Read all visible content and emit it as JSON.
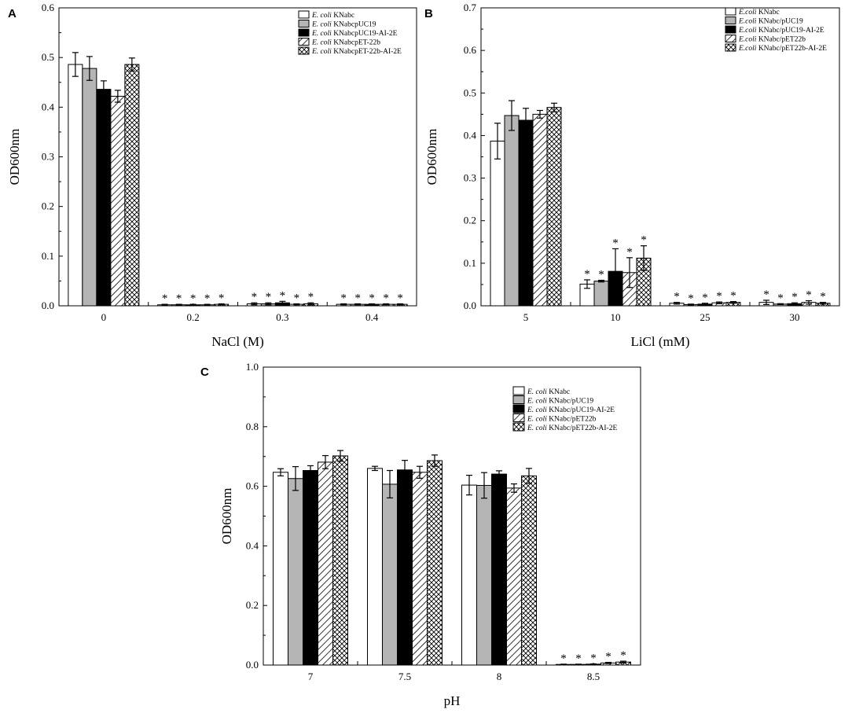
{
  "figure": {
    "panels": [
      "A",
      "B",
      "C"
    ]
  },
  "chart_data": [
    {
      "panel": "A",
      "type": "bar",
      "title": "",
      "xlabel": "NaCl (M)",
      "ylabel": "OD600nm",
      "ylim": [
        0,
        0.6
      ],
      "yticks": [
        "0.0",
        "0.1",
        "0.2",
        "0.3",
        "0.4",
        "0.5",
        "0.6"
      ],
      "categories": [
        "0",
        "0.2",
        "0.3",
        "0.4"
      ],
      "legend_position": "top-right",
      "series": [
        {
          "name_italic": "E. coli",
          "name_rest": "KNabc",
          "pattern": "white",
          "values": [
            0.486,
            0.002,
            0.004,
            0.003
          ],
          "errors": [
            0.024,
            0.001,
            0.002,
            0.001
          ],
          "stars": [
            false,
            true,
            true,
            true
          ]
        },
        {
          "name_italic": "E. coli",
          "name_rest": "KNabcpUC19",
          "pattern": "gray",
          "values": [
            0.478,
            0.002,
            0.004,
            0.003
          ],
          "errors": [
            0.024,
            0.001,
            0.002,
            0.001
          ],
          "stars": [
            false,
            true,
            true,
            true
          ]
        },
        {
          "name_italic": "E. coli",
          "name_rest": "KNabcpUC19-AI-2E",
          "pattern": "black",
          "values": [
            0.436,
            0.002,
            0.006,
            0.003
          ],
          "errors": [
            0.017,
            0.001,
            0.003,
            0.001
          ],
          "stars": [
            false,
            true,
            true,
            true
          ]
        },
        {
          "name_italic": "E. coli",
          "name_rest": "KNabcpET-22b",
          "pattern": "hatch",
          "values": [
            0.422,
            0.002,
            0.003,
            0.003
          ],
          "errors": [
            0.012,
            0.001,
            0.001,
            0.001
          ],
          "stars": [
            false,
            true,
            true,
            true
          ]
        },
        {
          "name_italic": "E. coli",
          "name_rest": "KNabcpET-22b-AI-2E",
          "pattern": "cross",
          "values": [
            0.486,
            0.003,
            0.004,
            0.003
          ],
          "errors": [
            0.013,
            0.001,
            0.002,
            0.001
          ],
          "stars": [
            false,
            true,
            true,
            true
          ]
        }
      ],
      "annotations": [
        "*"
      ]
    },
    {
      "panel": "B",
      "type": "bar",
      "title": "",
      "xlabel": "LiCl (mM)",
      "ylabel": "OD600nm",
      "ylim": [
        0,
        0.7
      ],
      "yticks": [
        "0.0",
        "0.1",
        "0.2",
        "0.3",
        "0.4",
        "0.5",
        "0.6",
        "0.7"
      ],
      "categories": [
        "5",
        "10",
        "25",
        "30"
      ],
      "legend_position": "top-right",
      "series": [
        {
          "name_italic": "E.coli",
          "name_rest": "KNabc",
          "pattern": "white",
          "values": [
            0.387,
            0.051,
            0.006,
            0.008
          ],
          "errors": [
            0.042,
            0.01,
            0.002,
            0.005
          ],
          "stars": [
            false,
            true,
            true,
            true
          ]
        },
        {
          "name_italic": "E.coli",
          "name_rest": "KNabc/pUC19",
          "pattern": "gray",
          "values": [
            0.447,
            0.058,
            0.003,
            0.004
          ],
          "errors": [
            0.035,
            0.002,
            0.001,
            0.001
          ],
          "stars": [
            false,
            true,
            true,
            true
          ]
        },
        {
          "name_italic": "E.coli",
          "name_rest": "KNabc/pUC19-AI-2E",
          "pattern": "black",
          "values": [
            0.436,
            0.081,
            0.004,
            0.005
          ],
          "errors": [
            0.028,
            0.053,
            0.002,
            0.002
          ],
          "stars": [
            false,
            true,
            true,
            true
          ]
        },
        {
          "name_italic": "E.coli",
          "name_rest": "KNabc/pET22b",
          "pattern": "hatch",
          "values": [
            0.45,
            0.078,
            0.007,
            0.008
          ],
          "errors": [
            0.009,
            0.035,
            0.002,
            0.004
          ],
          "stars": [
            false,
            true,
            true,
            true
          ]
        },
        {
          "name_italic": "E.coli",
          "name_rest": "KNabc/pET22b-AI-2E",
          "pattern": "cross",
          "values": [
            0.466,
            0.112,
            0.008,
            0.006
          ],
          "errors": [
            0.01,
            0.029,
            0.002,
            0.002
          ],
          "stars": [
            false,
            true,
            true,
            true
          ]
        }
      ],
      "annotations": [
        "*"
      ]
    },
    {
      "panel": "C",
      "type": "bar",
      "title": "",
      "xlabel": "pH",
      "ylabel": "OD600nm",
      "ylim": [
        0,
        1.0
      ],
      "yticks": [
        "0.0",
        "0.2",
        "0.4",
        "0.6",
        "0.8",
        "1.0"
      ],
      "categories": [
        "7",
        "7.5",
        "8",
        "8.5"
      ],
      "legend_position": "top-right",
      "series": [
        {
          "name_italic": "E. coli",
          "name_rest": "KNabc",
          "pattern": "white",
          "values": [
            0.647,
            0.66,
            0.604,
            0.002
          ],
          "errors": [
            0.012,
            0.007,
            0.033,
            0.001
          ],
          "stars": [
            false,
            false,
            false,
            true
          ]
        },
        {
          "name_italic": "E. coli",
          "name_rest": "KNabc/pUC19",
          "pattern": "gray",
          "values": [
            0.626,
            0.607,
            0.603,
            0.002
          ],
          "errors": [
            0.04,
            0.046,
            0.043,
            0.001
          ],
          "stars": [
            false,
            false,
            false,
            true
          ]
        },
        {
          "name_italic": "E. coli",
          "name_rest": "KNabc/pUC19-AI-2E",
          "pattern": "black",
          "values": [
            0.653,
            0.655,
            0.641,
            0.003
          ],
          "errors": [
            0.016,
            0.032,
            0.011,
            0.001
          ],
          "stars": [
            false,
            false,
            false,
            true
          ]
        },
        {
          "name_italic": "E. coli",
          "name_rest": "KNabc/pET22b",
          "pattern": "hatch",
          "values": [
            0.681,
            0.647,
            0.594,
            0.007
          ],
          "errors": [
            0.022,
            0.02,
            0.014,
            0.002
          ],
          "stars": [
            false,
            false,
            false,
            true
          ]
        },
        {
          "name_italic": "E. coli",
          "name_rest": "KNabc/pET22b-AI-2E",
          "pattern": "cross",
          "values": [
            0.702,
            0.686,
            0.635,
            0.01
          ],
          "errors": [
            0.018,
            0.019,
            0.025,
            0.003
          ],
          "stars": [
            false,
            false,
            false,
            true
          ]
        }
      ],
      "annotations": [
        "*"
      ]
    }
  ]
}
